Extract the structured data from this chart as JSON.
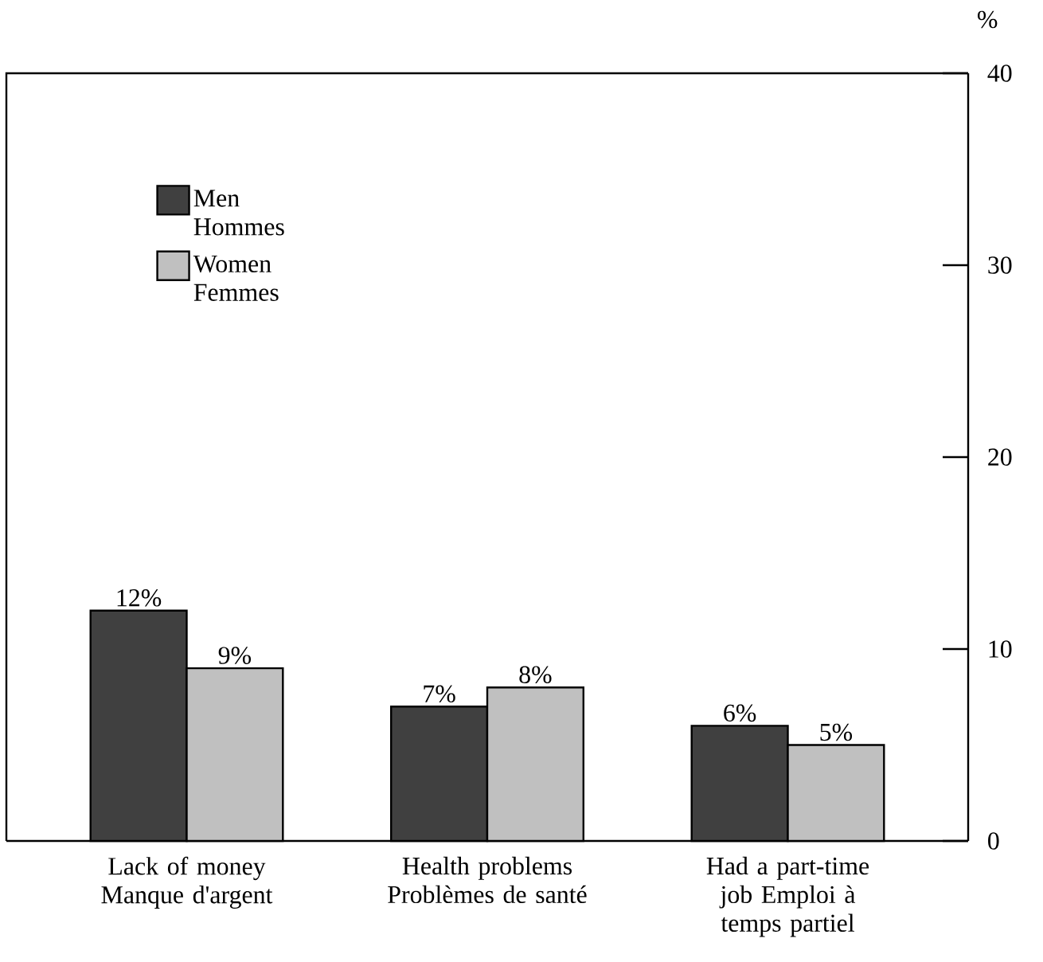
{
  "chart_data": {
    "type": "bar",
    "ylabel": "%",
    "categories": [
      "Lack of money Manque d'argent",
      "Health problems Problèmes de santé",
      "Had a part-time job Emploi à temps partiel"
    ],
    "series": [
      {
        "name": "Men Hommes",
        "color": "#404040",
        "values": [
          12,
          7,
          6
        ],
        "value_labels": [
          "12%",
          "7%",
          "6%"
        ]
      },
      {
        "name": "Women Femmes",
        "color": "#c0c0c0",
        "values": [
          9,
          8,
          5
        ],
        "value_labels": [
          "9%",
          "8%",
          "5%"
        ]
      }
    ],
    "ylim": [
      0,
      40
    ],
    "yticks": [
      0,
      10,
      20,
      30,
      40
    ],
    "legend": "top left",
    "grid": false
  }
}
